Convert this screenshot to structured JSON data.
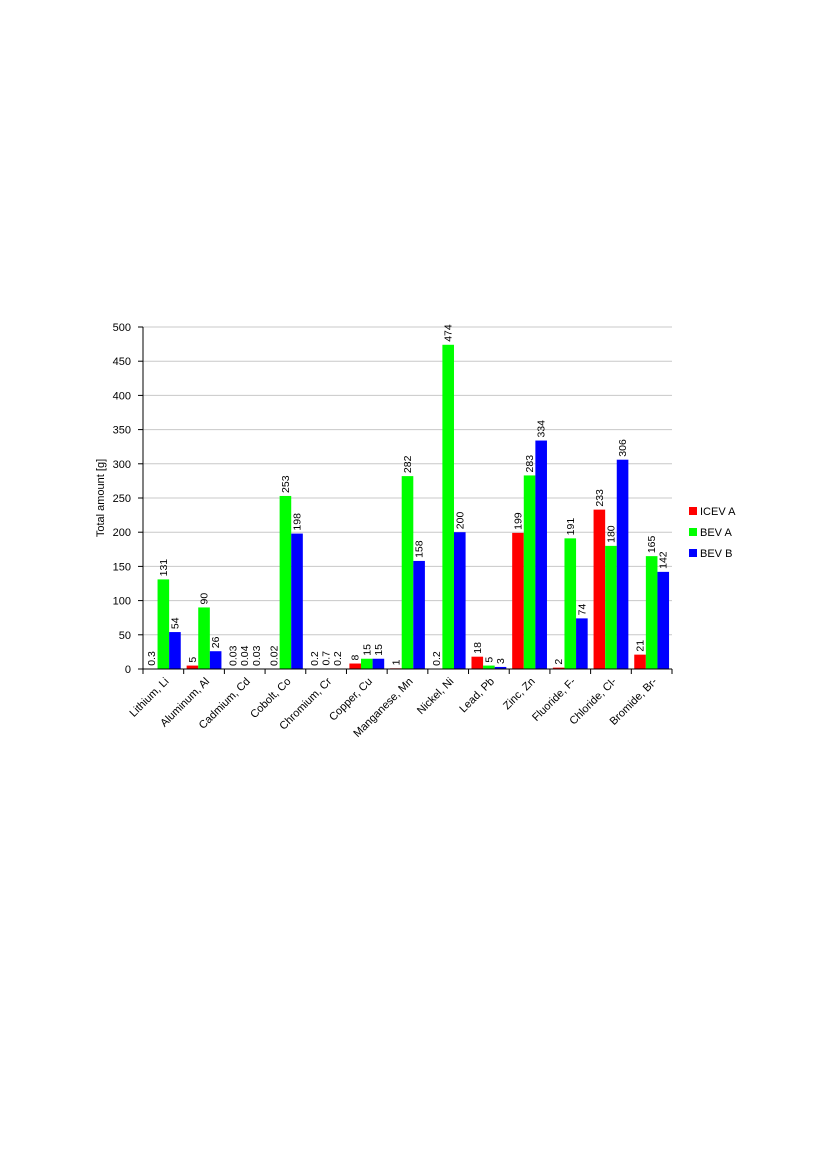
{
  "chart_data": {
    "type": "bar",
    "ylabel": "Total amount [g]",
    "ylim": [
      0,
      500
    ],
    "yticks": [
      0,
      50,
      100,
      150,
      200,
      250,
      300,
      350,
      400,
      450,
      500
    ],
    "grid": true,
    "legend_position": "right",
    "categories": [
      "Lithium, Li",
      "Aluminum, Al",
      "Cadmium, Cd",
      "Cobolt, Co",
      "Chromium, Cr",
      "Copper, Cu",
      "Manganese, Mn",
      "Nickel, Ni",
      "Lead, Pb",
      "Zinc, Zn",
      "Fluoride, F-",
      "Chloride, Cl-",
      "Bromide, Br-"
    ],
    "series": [
      {
        "name": "ICEV A",
        "color": "#ff0000",
        "values": [
          0.3,
          5,
          0.03,
          0.02,
          0.2,
          8,
          1,
          0.2,
          18,
          199,
          2,
          233,
          21
        ],
        "labels": [
          "0.3",
          "5",
          "0.03",
          "0.02",
          "0.2",
          "8",
          "1",
          "0.2",
          "18",
          "199",
          "2",
          "233",
          "21"
        ]
      },
      {
        "name": "BEV A",
        "color": "#00ff00",
        "values": [
          131,
          90,
          0.04,
          253,
          0.7,
          15,
          282,
          474,
          5,
          283,
          191,
          180,
          165
        ],
        "labels": [
          "131",
          "90",
          "0.04",
          "253",
          "0.7",
          "15",
          "282",
          "474",
          "5",
          "283",
          "191",
          "180",
          "165"
        ]
      },
      {
        "name": "BEV B",
        "color": "#0000ff",
        "values": [
          54,
          26,
          0.03,
          198,
          0.2,
          15,
          158,
          200,
          3,
          334,
          74,
          306,
          142
        ],
        "labels": [
          "54",
          "26",
          "0.03",
          "198",
          "0.2",
          "15",
          "158",
          "200",
          "3",
          "334",
          "74",
          "306",
          "142"
        ]
      }
    ]
  }
}
